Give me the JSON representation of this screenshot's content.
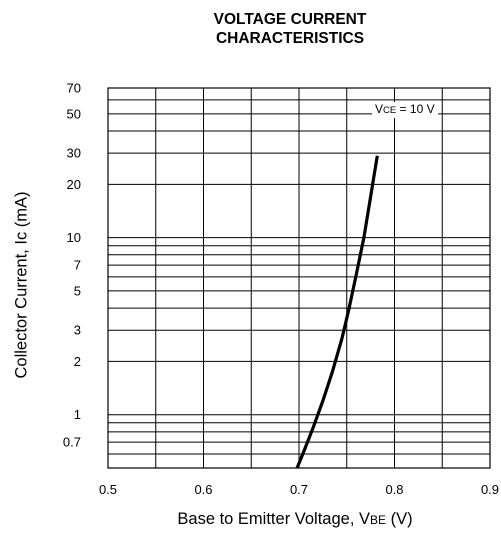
{
  "chart_data": {
    "type": "line",
    "title_line1": "VOLTAGE CURRENT",
    "title_line2": "CHARACTERISTICS",
    "xlabel_main": "Base to Emitter Voltage, V",
    "xlabel_sub": "BE",
    "xlabel_unit": " (V)",
    "ylabel": "Collector Current, Ic (mA)",
    "x_scale": "linear",
    "y_scale": "log",
    "xlim": [
      0.5,
      0.9
    ],
    "ylim": [
      0.5,
      70
    ],
    "x_ticks": [
      "0.5",
      "0.6",
      "0.7",
      "0.8",
      "0.9"
    ],
    "y_ticks": [
      "70",
      "50",
      "30",
      "20",
      "10",
      "7",
      "5",
      "3",
      "2",
      "1",
      "0.7"
    ],
    "grid": true,
    "legend": {
      "prefix": "V",
      "sub": "CE",
      "suffix": " = 10 V"
    },
    "series": [
      {
        "x": [
          0.698,
          0.705,
          0.715,
          0.725,
          0.735,
          0.745,
          0.752,
          0.76,
          0.768,
          0.775,
          0.782
        ],
        "y": [
          0.5,
          0.62,
          0.85,
          1.2,
          1.75,
          2.7,
          3.9,
          6.2,
          10.0,
          17.0,
          29.0
        ]
      }
    ]
  }
}
